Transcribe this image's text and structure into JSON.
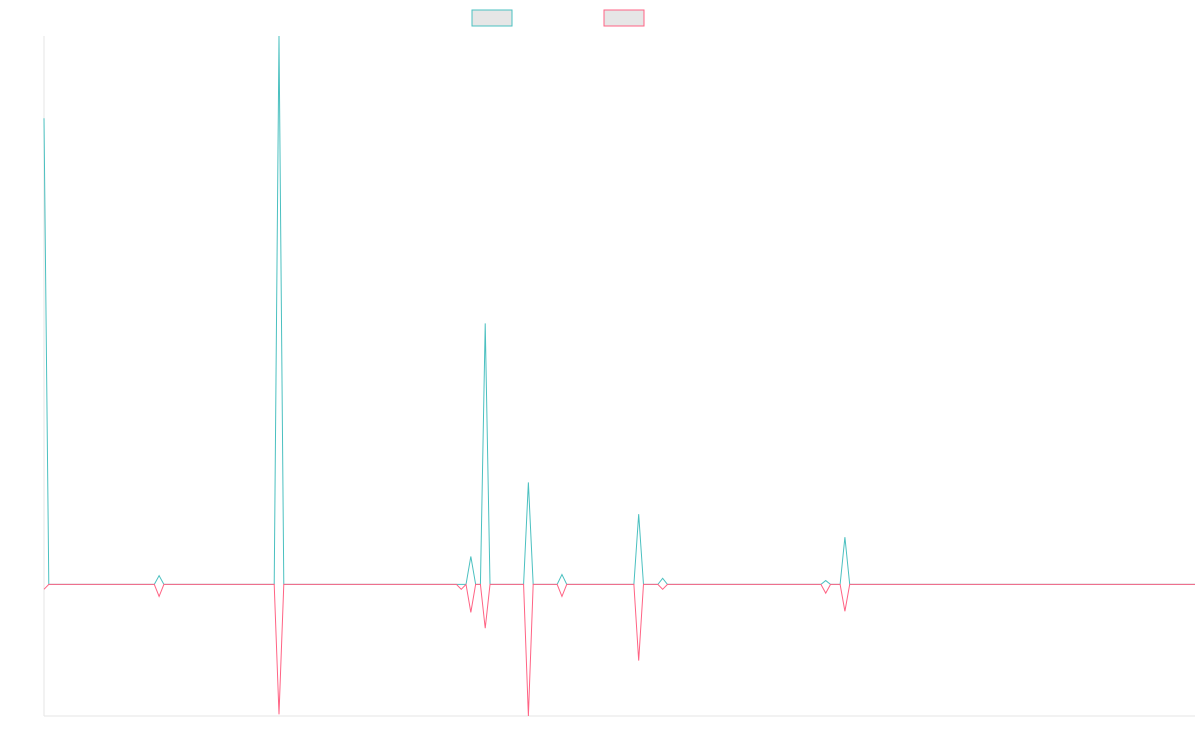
{
  "chart_data": {
    "type": "line",
    "x": [
      0,
      1,
      23,
      24,
      25,
      48,
      49,
      50,
      86,
      87,
      88,
      89,
      90,
      91,
      92,
      93,
      100,
      101,
      102,
      107,
      108,
      109,
      123,
      124,
      125,
      128,
      129,
      130,
      162,
      163,
      164,
      166,
      167,
      168,
      240
    ],
    "series": [
      {
        "color": "#4bc0c0",
        "values": [
          85,
          0,
          0,
          1.6,
          0,
          0,
          100,
          0,
          0,
          0,
          0,
          5.1,
          0,
          0,
          47.6,
          0,
          0,
          18.6,
          0,
          0,
          1.8,
          0,
          0,
          12.8,
          0,
          0,
          1.1,
          0,
          0,
          0.7,
          0,
          0,
          8.6,
          0,
          0
        ]
      },
      {
        "color": "#ff6384",
        "values": [
          -0.9,
          0,
          0,
          -2.2,
          0,
          0,
          -23.7,
          0,
          0,
          -0.9,
          0,
          -5.1,
          0,
          0,
          -8,
          0,
          0,
          -24,
          0,
          0,
          -2.2,
          0,
          0,
          -13.9,
          0,
          0,
          -0.9,
          0,
          0,
          -1.6,
          0,
          0,
          -4.9,
          0,
          0
        ]
      }
    ],
    "xlim": [
      0,
      240
    ],
    "ylim": [
      -24,
      100
    ],
    "grid": false
  }
}
